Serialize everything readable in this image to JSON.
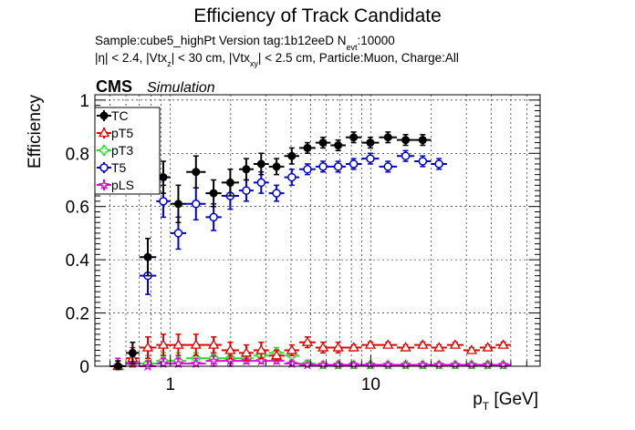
{
  "chart_data": {
    "type": "scatter",
    "title": "Efficiency of Track Candidate",
    "info_line1": "Sample:cube5_highPt   Version tag:1b12eeD  N",
    "info_line1_sub": "evt",
    "info_line1_tail": ":10000",
    "info_line2_parts": [
      "|η| < 2.4, |Vtx",
      "z",
      "| < 30 cm, |Vtx",
      "xy",
      "| < 2.5 cm, Particle:Muon, Charge:All"
    ],
    "cms_label": "CMS",
    "sim_label": "Simulation",
    "ylabel": "Efficiency",
    "xlabel_main": "p",
    "xlabel_sub": "T",
    "xlabel_unit": " [GeV]",
    "xscale": "log",
    "xlim": [
      0.42,
      70
    ],
    "ylim": [
      0,
      1.02
    ],
    "grid": true,
    "legend_position": "top-left",
    "x_tick_labels": [
      {
        "value": 1,
        "label": "1"
      },
      {
        "value": 10,
        "label": "10"
      }
    ],
    "y_tick_labels": [
      {
        "value": 0,
        "label": "0"
      },
      {
        "value": 0.2,
        "label": "0.2"
      },
      {
        "value": 0.4,
        "label": "0.4"
      },
      {
        "value": 0.6,
        "label": "0.6"
      },
      {
        "value": 0.8,
        "label": "0.8"
      },
      {
        "value": 1,
        "label": "1"
      }
    ],
    "bins": [
      {
        "lo": 0.5,
        "hi": 0.6
      },
      {
        "lo": 0.6,
        "hi": 0.7
      },
      {
        "lo": 0.7,
        "hi": 0.85
      },
      {
        "lo": 0.85,
        "hi": 1.0
      },
      {
        "lo": 1.0,
        "hi": 1.2
      },
      {
        "lo": 1.2,
        "hi": 1.5
      },
      {
        "lo": 1.5,
        "hi": 1.8
      },
      {
        "lo": 1.8,
        "hi": 2.2
      },
      {
        "lo": 2.2,
        "hi": 2.6
      },
      {
        "lo": 2.6,
        "hi": 3.1
      },
      {
        "lo": 3.1,
        "hi": 3.7
      },
      {
        "lo": 3.7,
        "hi": 4.4
      },
      {
        "lo": 4.4,
        "hi": 5.3
      },
      {
        "lo": 5.3,
        "hi": 6.3
      },
      {
        "lo": 6.3,
        "hi": 7.5
      },
      {
        "lo": 7.5,
        "hi": 9.0
      },
      {
        "lo": 9.0,
        "hi": 11.0
      },
      {
        "lo": 11.0,
        "hi": 13.5
      },
      {
        "lo": 13.5,
        "hi": 16.5
      },
      {
        "lo": 16.5,
        "hi": 20
      },
      {
        "lo": 20,
        "hi": 24
      },
      {
        "lo": 24,
        "hi": 29
      },
      {
        "lo": 29,
        "hi": 35
      },
      {
        "lo": 35,
        "hi": 42
      },
      {
        "lo": 42,
        "hi": 50
      }
    ],
    "series": [
      {
        "name": "TC",
        "color": "#000000",
        "marker": "filled-circle",
        "values": [
          0.0,
          0.05,
          0.41,
          0.71,
          0.61,
          0.73,
          0.65,
          0.69,
          0.74,
          0.76,
          0.75,
          0.79,
          0.82,
          0.84,
          0.83,
          0.86,
          0.84,
          0.86,
          0.85,
          0.85,
          null,
          null,
          null,
          null,
          null
        ],
        "errors": [
          0.02,
          0.04,
          0.07,
          0.06,
          0.07,
          0.06,
          0.05,
          0.05,
          0.04,
          0.04,
          0.03,
          0.03,
          0.02,
          0.02,
          0.02,
          0.02,
          0.02,
          0.02,
          0.02,
          0.02,
          null,
          null,
          null,
          null,
          null
        ]
      },
      {
        "name": "pT5",
        "color": "#e00000",
        "marker": "open-triangle",
        "values": [
          0.0,
          0.03,
          0.07,
          0.08,
          0.08,
          0.08,
          0.08,
          0.06,
          0.05,
          0.06,
          0.04,
          0.06,
          0.09,
          0.07,
          0.07,
          0.07,
          0.08,
          0.08,
          0.07,
          0.08,
          0.07,
          0.08,
          0.06,
          0.07,
          0.08
        ],
        "errors": [
          0.02,
          0.04,
          0.04,
          0.04,
          0.04,
          0.04,
          0.03,
          0.03,
          0.03,
          0.03,
          0.02,
          0.02,
          0.02,
          0.02,
          0.02,
          0.01,
          0.01,
          0.01,
          0.01,
          0.01,
          0.01,
          0.01,
          0.01,
          0.01,
          0.01
        ]
      },
      {
        "name": "pT3",
        "color": "#22dd22",
        "marker": "open-cross",
        "values": [
          0.0,
          0.01,
          0.01,
          0.02,
          0.02,
          0.03,
          0.03,
          0.03,
          0.03,
          0.04,
          0.05,
          0.04,
          0.01,
          0.005,
          0.005,
          0.005,
          0.005,
          0.005,
          0.005,
          0.005,
          0.005,
          0.005,
          0.005,
          0.005,
          0.005
        ],
        "errors": [
          0.02,
          0.03,
          0.03,
          0.03,
          0.03,
          0.02,
          0.02,
          0.02,
          0.02,
          0.02,
          0.02,
          0.02,
          0.01,
          0.005,
          0.005,
          0.005,
          0.005,
          0.005,
          0.005,
          0.005,
          0.005,
          0.005,
          0.005,
          0.005,
          0.005
        ]
      },
      {
        "name": "T5",
        "color": "#0000cc",
        "marker": "open-circle",
        "values": [
          null,
          null,
          0.34,
          0.62,
          0.5,
          0.61,
          0.56,
          0.64,
          0.66,
          0.69,
          0.65,
          0.71,
          0.74,
          0.75,
          0.75,
          0.76,
          0.78,
          0.75,
          0.79,
          0.77,
          0.76,
          null,
          null,
          null,
          null
        ],
        "errors": [
          null,
          null,
          0.07,
          0.06,
          0.06,
          0.06,
          0.05,
          0.05,
          0.04,
          0.04,
          0.03,
          0.03,
          0.02,
          0.02,
          0.02,
          0.02,
          0.02,
          0.02,
          0.02,
          0.02,
          0.02,
          null,
          null,
          null,
          null
        ]
      },
      {
        "name": "pLS",
        "color": "#e000e0",
        "marker": "open-star",
        "values": [
          0.0,
          0.01,
          0.0,
          0.01,
          0.01,
          0.01,
          0.02,
          0.02,
          0.02,
          0.02,
          0.02,
          0.01,
          0.005,
          0.005,
          0.005,
          0.005,
          0.005,
          0.005,
          0.005,
          0.005,
          0.005,
          0.005,
          0.005,
          0.005,
          0.005
        ],
        "errors": [
          0.03,
          0.03,
          0.02,
          0.02,
          0.02,
          0.02,
          0.02,
          0.02,
          0.01,
          0.01,
          0.01,
          0.01,
          0.005,
          0.005,
          0.005,
          0.005,
          0.005,
          0.005,
          0.005,
          0.005,
          0.005,
          0.005,
          0.005,
          0.005,
          0.005
        ]
      }
    ]
  }
}
